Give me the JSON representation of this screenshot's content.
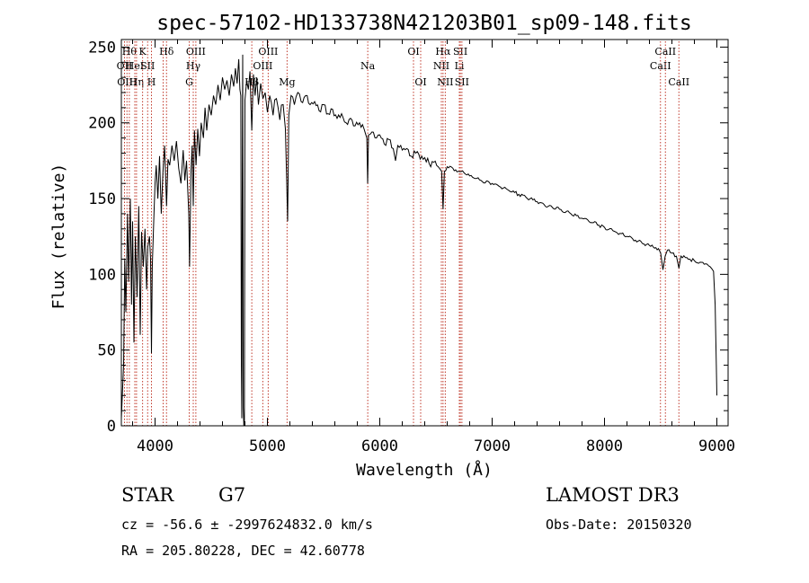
{
  "chart_data": {
    "type": "line",
    "title": "spec-57102-HD133738N421203B01_sp09-148.fits",
    "xlabel": "Wavelength (Å)",
    "ylabel": "Flux (relative)",
    "xlim": [
      3700,
      9100
    ],
    "ylim": [
      0,
      255
    ],
    "xticks": [
      4000,
      5000,
      6000,
      7000,
      8000,
      9000
    ],
    "yticks": [
      0,
      50,
      100,
      150,
      200,
      250
    ],
    "line_color": "#000000",
    "marker_color": "#c0392b",
    "series": [
      {
        "name": "spectrum",
        "points": [
          [
            3700,
            5
          ],
          [
            3720,
            40
          ],
          [
            3730,
            110
          ],
          [
            3740,
            75
          ],
          [
            3755,
            140
          ],
          [
            3765,
            95
          ],
          [
            3780,
            150
          ],
          [
            3790,
            80
          ],
          [
            3800,
            135
          ],
          [
            3812,
            55
          ],
          [
            3825,
            125
          ],
          [
            3840,
            85
          ],
          [
            3855,
            145
          ],
          [
            3868,
            60
          ],
          [
            3880,
            128
          ],
          [
            3895,
            105
          ],
          [
            3910,
            130
          ],
          [
            3925,
            90
          ],
          [
            3935,
            118
          ],
          [
            3950,
            125
          ],
          [
            3960,
            110
          ],
          [
            3968,
            48
          ],
          [
            3975,
            105
          ],
          [
            3990,
            140
          ],
          [
            4000,
            160
          ],
          [
            4010,
            172
          ],
          [
            4025,
            150
          ],
          [
            4040,
            178
          ],
          [
            4055,
            140
          ],
          [
            4070,
            168
          ],
          [
            4085,
            185
          ],
          [
            4102,
            145
          ],
          [
            4115,
            176
          ],
          [
            4130,
            172
          ],
          [
            4150,
            185
          ],
          [
            4170,
            175
          ],
          [
            4190,
            188
          ],
          [
            4210,
            170
          ],
          [
            4230,
            160
          ],
          [
            4250,
            182
          ],
          [
            4265,
            162
          ],
          [
            4280,
            175
          ],
          [
            4300,
            140
          ],
          [
            4307,
            105
          ],
          [
            4320,
            168
          ],
          [
            4330,
            185
          ],
          [
            4340,
            145
          ],
          [
            4350,
            195
          ],
          [
            4365,
            172
          ],
          [
            4380,
            196
          ],
          [
            4395,
            178
          ],
          [
            4410,
            200
          ],
          [
            4430,
            190
          ],
          [
            4445,
            210
          ],
          [
            4460,
            195
          ],
          [
            4480,
            212
          ],
          [
            4500,
            205
          ],
          [
            4520,
            218
          ],
          [
            4540,
            212
          ],
          [
            4560,
            225
          ],
          [
            4580,
            215
          ],
          [
            4600,
            230
          ],
          [
            4620,
            222
          ],
          [
            4640,
            228
          ],
          [
            4660,
            218
          ],
          [
            4680,
            232
          ],
          [
            4700,
            224
          ],
          [
            4715,
            236
          ],
          [
            4730,
            226
          ],
          [
            4745,
            242
          ],
          [
            4755,
            222
          ],
          [
            4763,
            218
          ],
          [
            4768,
            40
          ],
          [
            4772,
            5
          ],
          [
            4775,
            140
          ],
          [
            4780,
            245
          ],
          [
            4785,
            12
          ],
          [
            4790,
            0
          ],
          [
            4795,
            2
          ],
          [
            4800,
            215
          ],
          [
            4815,
            228
          ],
          [
            4830,
            222
          ],
          [
            4845,
            234
          ],
          [
            4861,
            195
          ],
          [
            4875,
            232
          ],
          [
            4890,
            218
          ],
          [
            4905,
            230
          ],
          [
            4920,
            212
          ],
          [
            4940,
            226
          ],
          [
            4960,
            216
          ],
          [
            4980,
            220
          ],
          [
            5000,
            207
          ],
          [
            5020,
            218
          ],
          [
            5050,
            205
          ],
          [
            5080,
            216
          ],
          [
            5110,
            202
          ],
          [
            5140,
            212
          ],
          [
            5160,
            196
          ],
          [
            5172,
            160
          ],
          [
            5180,
            135
          ],
          [
            5190,
            205
          ],
          [
            5210,
            218
          ],
          [
            5240,
            212
          ],
          [
            5270,
            220
          ],
          [
            5300,
            214
          ],
          [
            5340,
            218
          ],
          [
            5380,
            212
          ],
          [
            5420,
            214
          ],
          [
            5460,
            208
          ],
          [
            5500,
            212
          ],
          [
            5540,
            206
          ],
          [
            5580,
            209
          ],
          [
            5620,
            203
          ],
          [
            5660,
            206
          ],
          [
            5700,
            200
          ],
          [
            5740,
            203
          ],
          [
            5780,
            198
          ],
          [
            5820,
            200
          ],
          [
            5860,
            196
          ],
          [
            5885,
            190
          ],
          [
            5892,
            160
          ],
          [
            5900,
            192
          ],
          [
            5930,
            194
          ],
          [
            5970,
            190
          ],
          [
            6000,
            192
          ],
          [
            6040,
            186
          ],
          [
            6080,
            189
          ],
          [
            6120,
            183
          ],
          [
            6140,
            175
          ],
          [
            6160,
            185
          ],
          [
            6200,
            182
          ],
          [
            6240,
            183
          ],
          [
            6280,
            178
          ],
          [
            6320,
            180
          ],
          [
            6360,
            176
          ],
          [
            6400,
            177
          ],
          [
            6440,
            173
          ],
          [
            6480,
            174
          ],
          [
            6520,
            171
          ],
          [
            6550,
            168
          ],
          [
            6563,
            143
          ],
          [
            6575,
            168
          ],
          [
            6600,
            171
          ],
          [
            6650,
            170
          ],
          [
            6700,
            168
          ],
          [
            6750,
            167
          ],
          [
            6800,
            165
          ],
          [
            6900,
            162
          ],
          [
            7000,
            160
          ],
          [
            7100,
            157
          ],
          [
            7200,
            154
          ],
          [
            7300,
            151
          ],
          [
            7400,
            148
          ],
          [
            7500,
            145
          ],
          [
            7600,
            143
          ],
          [
            7700,
            140
          ],
          [
            7800,
            137
          ],
          [
            7900,
            134
          ],
          [
            8000,
            131
          ],
          [
            8100,
            128
          ],
          [
            8200,
            125
          ],
          [
            8300,
            122
          ],
          [
            8400,
            119
          ],
          [
            8480,
            117
          ],
          [
            8500,
            114
          ],
          [
            8520,
            103
          ],
          [
            8540,
            112
          ],
          [
            8560,
            116
          ],
          [
            8600,
            114
          ],
          [
            8640,
            112
          ],
          [
            8662,
            104
          ],
          [
            8680,
            112
          ],
          [
            8720,
            111
          ],
          [
            8760,
            110
          ],
          [
            8800,
            109
          ],
          [
            8850,
            108
          ],
          [
            8900,
            107
          ],
          [
            8940,
            105
          ],
          [
            8970,
            102
          ],
          [
            8985,
            80
          ],
          [
            8995,
            40
          ],
          [
            9000,
            20
          ]
        ]
      }
    ],
    "line_markers": [
      {
        "wave": 3728,
        "label": "OII",
        "row": 1
      },
      {
        "wave": 3750,
        "label": "OIII",
        "row": 2
      },
      {
        "wave": 3771,
        "label": "Hθ",
        "row": 0
      },
      {
        "wave": 3820,
        "label": "HeI",
        "row": 1
      },
      {
        "wave": 3835,
        "label": "Hη",
        "row": 2
      },
      {
        "wave": 3889,
        "label": "K",
        "row": 0
      },
      {
        "wave": 3934,
        "label": "SII",
        "row": 1
      },
      {
        "wave": 3968,
        "label": "H",
        "row": 2
      },
      {
        "wave": 4102,
        "label": "Hδ",
        "row": 0
      },
      {
        "wave": 4072,
        "label": "",
        "row": 1
      },
      {
        "wave": 4304,
        "label": "G",
        "row": 2
      },
      {
        "wave": 4340,
        "label": "Hγ",
        "row": 1
      },
      {
        "wave": 4363,
        "label": "OIII",
        "row": 0
      },
      {
        "wave": 4861,
        "label": "Hβ",
        "row": 2
      },
      {
        "wave": 4959,
        "label": "OIII",
        "row": 1
      },
      {
        "wave": 5007,
        "label": "OIII",
        "row": 0
      },
      {
        "wave": 5175,
        "label": "Mg",
        "row": 2
      },
      {
        "wave": 5893,
        "label": "Na",
        "row": 1
      },
      {
        "wave": 6300,
        "label": "OI",
        "row": 0
      },
      {
        "wave": 6364,
        "label": "OI",
        "row": 2
      },
      {
        "wave": 6548,
        "label": "NII",
        "row": 1
      },
      {
        "wave": 6563,
        "label": "Hα",
        "row": 0
      },
      {
        "wave": 6583,
        "label": "NII",
        "row": 2
      },
      {
        "wave": 6708,
        "label": "Li",
        "row": 1
      },
      {
        "wave": 6717,
        "label": "SII",
        "row": 0
      },
      {
        "wave": 6731,
        "label": "SII",
        "row": 2
      },
      {
        "wave": 8498,
        "label": "CaII",
        "row": 1
      },
      {
        "wave": 8542,
        "label": "CaII",
        "row": 0
      },
      {
        "wave": 8662,
        "label": "CaII",
        "row": 2
      }
    ]
  },
  "info": {
    "object_type": "STAR",
    "subclass": "G7",
    "survey": "LAMOST DR3",
    "redshift_line": "cz = -56.6 ± -2997624832.0 km/s",
    "obs_date_line": "Obs-Date: 20150320",
    "coords_line": "RA = 205.80228, DEC =  42.60778"
  }
}
